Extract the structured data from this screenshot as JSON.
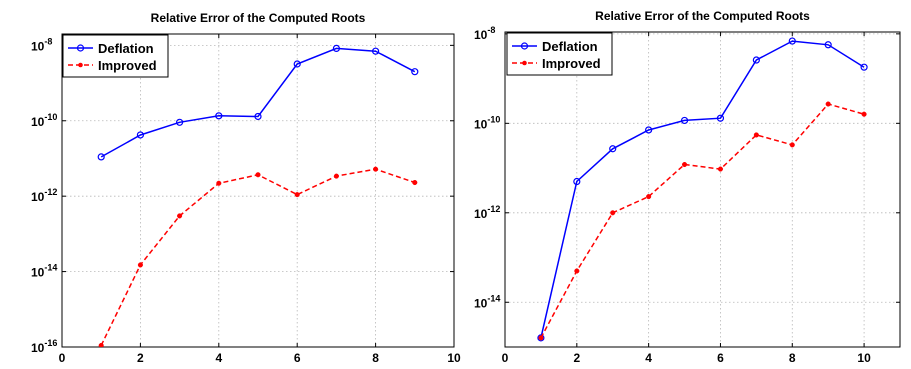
{
  "chart_data": [
    {
      "type": "line",
      "title": "Relative Error of the Computed Roots",
      "xlabel": "",
      "ylabel": "",
      "xlim": [
        0,
        10
      ],
      "ylim": [
        1e-16,
        2e-08
      ],
      "yscale": "log",
      "grid": true,
      "legend_position": "top-left",
      "x_ticks": [
        "0",
        "2",
        "4",
        "6",
        "8",
        "10"
      ],
      "y_ticks": [
        {
          "base": "10",
          "exp": "-16",
          "value": 1e-16
        },
        {
          "base": "10",
          "exp": "-14",
          "value": 1e-14
        },
        {
          "base": "10",
          "exp": "-12",
          "value": 1e-12
        },
        {
          "base": "10",
          "exp": "-10",
          "value": 1e-10
        },
        {
          "base": "10",
          "exp": "-8",
          "value": 1e-08
        }
      ],
      "series": [
        {
          "name": "Deflation",
          "color": "#0000ff",
          "line": "solid",
          "marker": "circle",
          "x": [
            1,
            2,
            3,
            4,
            5,
            6,
            7,
            8,
            9
          ],
          "y": [
            1.1e-11,
            4.2e-11,
            9.1e-11,
            1.35e-10,
            1.3e-10,
            3.2e-09,
            8.3e-09,
            7e-09,
            2e-09
          ]
        },
        {
          "name": "Improved",
          "color": "#ff0000",
          "line": "dashed",
          "marker": "dot",
          "x": [
            1,
            2,
            3,
            4,
            5,
            6,
            7,
            8,
            9
          ],
          "y": [
            1.1e-16,
            1.5e-14,
            3e-13,
            2.2e-12,
            3.7e-12,
            1.1e-12,
            3.4e-12,
            5.2e-12,
            2.3e-12
          ]
        }
      ]
    },
    {
      "type": "line",
      "title": "Relative Error of the Computed Roots",
      "xlabel": "",
      "ylabel": "",
      "xlim": [
        0,
        11
      ],
      "ylim": [
        1e-15,
        1.1e-08
      ],
      "yscale": "log",
      "grid": true,
      "legend_position": "top-left",
      "x_ticks": [
        "0",
        "2",
        "4",
        "6",
        "8",
        "10"
      ],
      "y_ticks": [
        {
          "base": "10",
          "exp": "-14",
          "value": 1e-14
        },
        {
          "base": "10",
          "exp": "-12",
          "value": 1e-12
        },
        {
          "base": "10",
          "exp": "-10",
          "value": 1e-10
        },
        {
          "base": "10",
          "exp": "-8",
          "value": 1e-08
        }
      ],
      "series": [
        {
          "name": "Deflation",
          "color": "#0000ff",
          "line": "solid",
          "marker": "circle",
          "x": [
            1,
            2,
            3,
            4,
            5,
            6,
            7,
            8,
            9,
            10
          ],
          "y": [
            1.6e-15,
            5e-12,
            2.7e-11,
            7.1e-11,
            1.16e-10,
            1.3e-10,
            2.6e-09,
            6.9e-09,
            5.7e-09,
            1.8e-09
          ]
        },
        {
          "name": "Improved",
          "color": "#ff0000",
          "line": "dashed",
          "marker": "dot",
          "x": [
            1,
            2,
            3,
            4,
            5,
            6,
            7,
            8,
            9,
            10
          ],
          "y": [
            1.6e-15,
            5e-14,
            1e-12,
            2.3e-12,
            1.2e-11,
            9.5e-12,
            5.5e-11,
            3.3e-11,
            2.7e-10,
            1.6e-10
          ]
        }
      ]
    }
  ]
}
